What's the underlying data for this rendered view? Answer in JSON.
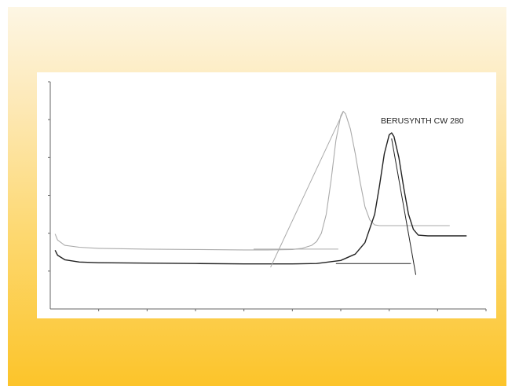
{
  "chart_data": {
    "type": "line",
    "title": "",
    "xlabel": "",
    "ylabel": "",
    "xlim": [
      0,
      9
    ],
    "ylim": [
      0,
      6
    ],
    "grid": false,
    "annotation": "BERUSYNTH CW 280",
    "series": [
      {
        "name": "",
        "color": "#aaaaaa",
        "x": [
          0.1,
          0.15,
          0.3,
          0.6,
          1.0,
          2.0,
          3.0,
          4.0,
          4.5,
          5.0,
          5.2,
          5.4,
          5.5,
          5.6,
          5.7,
          5.8,
          5.9,
          6.0,
          6.05,
          6.1,
          6.2,
          6.3,
          6.4,
          6.5,
          6.6,
          6.7,
          6.8,
          6.9,
          7.0,
          7.2,
          7.6,
          8.0,
          8.25
        ],
        "y": [
          1.98,
          1.82,
          1.68,
          1.63,
          1.6,
          1.58,
          1.57,
          1.56,
          1.56,
          1.57,
          1.6,
          1.68,
          1.78,
          2.0,
          2.5,
          3.4,
          4.45,
          5.1,
          5.22,
          5.15,
          4.75,
          4.1,
          3.35,
          2.7,
          2.35,
          2.22,
          2.2,
          2.2,
          2.2,
          2.2,
          2.2,
          2.2,
          2.2
        ]
      },
      {
        "name": "BERUSYNTH CW 280",
        "color": "#222222",
        "x": [
          0.1,
          0.15,
          0.3,
          0.6,
          1.0,
          2.0,
          3.0,
          4.0,
          5.0,
          5.5,
          6.0,
          6.3,
          6.5,
          6.7,
          6.8,
          6.9,
          7.0,
          7.05,
          7.1,
          7.2,
          7.3,
          7.4,
          7.5,
          7.6,
          7.8,
          8.0,
          8.2,
          8.6
        ],
        "y": [
          1.55,
          1.42,
          1.3,
          1.24,
          1.22,
          1.21,
          1.2,
          1.19,
          1.19,
          1.2,
          1.28,
          1.45,
          1.75,
          2.5,
          3.25,
          4.1,
          4.6,
          4.65,
          4.55,
          4.0,
          3.2,
          2.5,
          2.1,
          1.95,
          1.93,
          1.93,
          1.93,
          1.93
        ]
      }
    ],
    "tangents": [
      {
        "series": 0,
        "x": [
          4.55,
          6.05
        ],
        "y": [
          1.1,
          5.2
        ]
      },
      {
        "series": 1,
        "x": [
          7.05,
          7.55
        ],
        "y": [
          4.5,
          0.9
        ]
      }
    ],
    "baselines": [
      {
        "series": 0,
        "x": [
          4.2,
          5.95
        ],
        "y": [
          1.58,
          1.58
        ]
      },
      {
        "series": 1,
        "x": [
          5.9,
          7.45
        ],
        "y": [
          1.2,
          1.2
        ]
      }
    ]
  }
}
